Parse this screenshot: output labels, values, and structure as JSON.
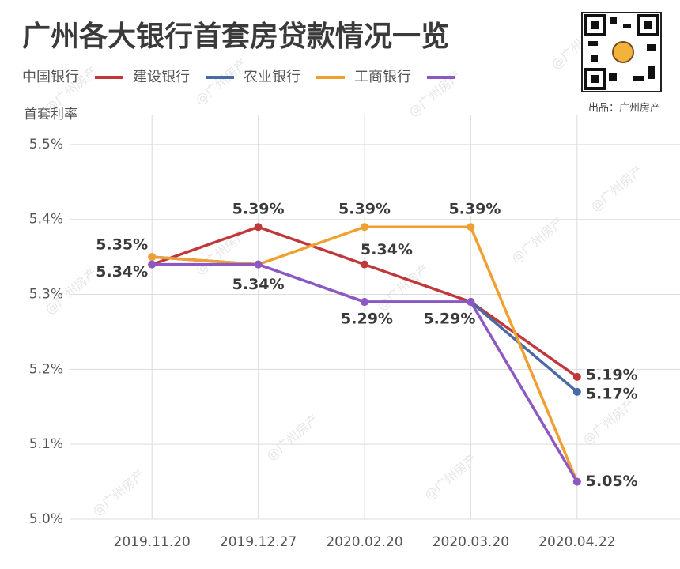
{
  "chart_data": {
    "type": "line",
    "title": "广州各大银行首套房贷款情况一览",
    "y_label": "首套利率",
    "source": "出品：广州房产",
    "watermark": "@广州房产",
    "categories": [
      "2019.11.20",
      "2019.12.27",
      "2020.02.20",
      "2020.03.20",
      "2020.04.22"
    ],
    "series": [
      {
        "name": "中国银行",
        "color": "#c0383a",
        "values": [
          5.34,
          5.39,
          5.34,
          5.29,
          5.19
        ],
        "value_labels": [
          "5.34%",
          "5.39%",
          "5.34%",
          null,
          "5.19%"
        ]
      },
      {
        "name": "建设银行",
        "color": "#4a6aa5",
        "values": [
          5.35,
          5.34,
          5.29,
          5.29,
          5.17
        ],
        "value_labels": [
          "5.35%",
          "5.34%",
          "5.29%",
          "5.29%",
          "5.17%"
        ]
      },
      {
        "name": "农业银行",
        "color": "#f0a030",
        "values": [
          5.35,
          5.34,
          5.39,
          5.39,
          5.05
        ],
        "value_labels": [
          null,
          null,
          "5.39%",
          "5.39%",
          null
        ]
      },
      {
        "name": "工商银行",
        "color": "#8e58c4",
        "values": [
          5.34,
          5.34,
          5.29,
          5.29,
          5.05
        ],
        "value_labels": [
          null,
          null,
          null,
          null,
          "5.05%"
        ]
      }
    ],
    "ylim": [
      5.0,
      5.54
    ],
    "yticks": [
      {
        "value": 5.0,
        "label": "5.0%"
      },
      {
        "value": 5.1,
        "label": "5.1%"
      },
      {
        "value": 5.2,
        "label": "5.2%"
      },
      {
        "value": 5.3,
        "label": "5.3%"
      },
      {
        "value": 5.4,
        "label": "5.4%"
      },
      {
        "value": 5.5,
        "label": "5.5%"
      }
    ],
    "grid": true
  }
}
